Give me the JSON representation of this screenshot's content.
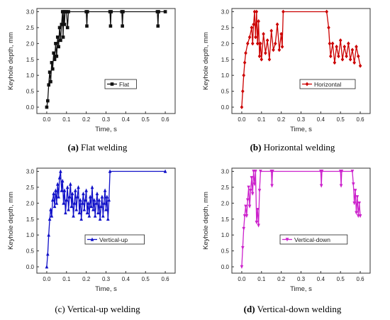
{
  "chart_data": [
    {
      "id": "flat",
      "type": "line",
      "caption_tag": "(a)",
      "caption_text": "Flat welding",
      "xlabel": "Time, s",
      "ylabel": "Keyhole depth, mm",
      "xlim": [
        -0.05,
        0.65
      ],
      "ylim": [
        -0.2,
        3.1
      ],
      "xticks": [
        "0.0",
        "0.1",
        "0.2",
        "0.3",
        "0.4",
        "0.5",
        "0.6"
      ],
      "yticks": [
        "0.0",
        "0.5",
        "1.0",
        "1.5",
        "2.0",
        "2.5",
        "3.0"
      ],
      "legend_position": "right",
      "series": [
        {
          "name": "Flat",
          "color": "#111111",
          "marker": "square",
          "points": [
            [
              0.0,
              0.0
            ],
            [
              0.005,
              0.2
            ],
            [
              0.01,
              0.7
            ],
            [
              0.015,
              1.1
            ],
            [
              0.02,
              0.8
            ],
            [
              0.025,
              1.4
            ],
            [
              0.03,
              1.2
            ],
            [
              0.035,
              1.7
            ],
            [
              0.04,
              1.5
            ],
            [
              0.045,
              2.0
            ],
            [
              0.05,
              1.6
            ],
            [
              0.055,
              2.2
            ],
            [
              0.06,
              1.9
            ],
            [
              0.065,
              2.5
            ],
            [
              0.07,
              2.1
            ],
            [
              0.075,
              2.6
            ],
            [
              0.08,
              3.0
            ],
            [
              0.083,
              2.2
            ],
            [
              0.086,
              3.0
            ],
            [
              0.09,
              2.6
            ],
            [
              0.093,
              3.0
            ],
            [
              0.1,
              3.0
            ],
            [
              0.105,
              2.5
            ],
            [
              0.11,
              3.0
            ],
            [
              0.2,
              3.0
            ],
            [
              0.203,
              2.55
            ],
            [
              0.206,
              3.0
            ],
            [
              0.32,
              3.0
            ],
            [
              0.323,
              2.55
            ],
            [
              0.326,
              3.0
            ],
            [
              0.38,
              3.0
            ],
            [
              0.383,
              2.55
            ],
            [
              0.386,
              3.0
            ],
            [
              0.56,
              3.0
            ],
            [
              0.563,
              2.55
            ],
            [
              0.566,
              3.0
            ],
            [
              0.6,
              3.0
            ]
          ]
        }
      ]
    },
    {
      "id": "horizontal",
      "type": "line",
      "caption_tag": "(b)",
      "caption_text": "Horizontal welding",
      "xlabel": "Time, s",
      "ylabel": "Keyhole depth, mm",
      "xlim": [
        -0.05,
        0.65
      ],
      "ylim": [
        -0.2,
        3.1
      ],
      "xticks": [
        "0.0",
        "0.1",
        "0.2",
        "0.3",
        "0.4",
        "0.5",
        "0.6"
      ],
      "yticks": [
        "0.0",
        "0.5",
        "1.0",
        "1.5",
        "2.0",
        "2.5",
        "3.0"
      ],
      "legend_position": "right",
      "series": [
        {
          "name": "Horizontal",
          "color": "#cc0000",
          "marker": "diamond",
          "points": [
            [
              0.0,
              0.0
            ],
            [
              0.005,
              0.5
            ],
            [
              0.01,
              1.0
            ],
            [
              0.015,
              1.4
            ],
            [
              0.02,
              1.7
            ],
            [
              0.03,
              2.0
            ],
            [
              0.04,
              2.2
            ],
            [
              0.05,
              2.5
            ],
            [
              0.055,
              2.0
            ],
            [
              0.06,
              2.6
            ],
            [
              0.065,
              3.0
            ],
            [
              0.07,
              2.2
            ],
            [
              0.075,
              3.0
            ],
            [
              0.08,
              2.0
            ],
            [
              0.085,
              2.7
            ],
            [
              0.09,
              1.6
            ],
            [
              0.095,
              2.0
            ],
            [
              0.1,
              1.5
            ],
            [
              0.11,
              2.3
            ],
            [
              0.12,
              1.7
            ],
            [
              0.13,
              2.1
            ],
            [
              0.14,
              1.5
            ],
            [
              0.15,
              2.4
            ],
            [
              0.16,
              1.8
            ],
            [
              0.17,
              2.0
            ],
            [
              0.18,
              2.6
            ],
            [
              0.19,
              1.8
            ],
            [
              0.2,
              2.3
            ],
            [
              0.205,
              1.9
            ],
            [
              0.21,
              3.0
            ],
            [
              0.43,
              3.0
            ],
            [
              0.44,
              2.5
            ],
            [
              0.445,
              2.0
            ],
            [
              0.45,
              1.6
            ],
            [
              0.46,
              2.0
            ],
            [
              0.47,
              1.4
            ],
            [
              0.48,
              1.9
            ],
            [
              0.49,
              1.6
            ],
            [
              0.5,
              2.1
            ],
            [
              0.51,
              1.5
            ],
            [
              0.52,
              1.9
            ],
            [
              0.53,
              1.6
            ],
            [
              0.54,
              2.0
            ],
            [
              0.55,
              1.5
            ],
            [
              0.56,
              1.8
            ],
            [
              0.57,
              1.4
            ],
            [
              0.58,
              1.9
            ],
            [
              0.59,
              1.6
            ],
            [
              0.6,
              1.3
            ]
          ]
        }
      ]
    },
    {
      "id": "vertical-up",
      "type": "line",
      "caption_tag": "(c)",
      "caption_text": "Vertical-up welding",
      "xlabel": "Time, s",
      "ylabel": "Keyhole depth, mm",
      "xlim": [
        -0.05,
        0.65
      ],
      "ylim": [
        -0.2,
        3.1
      ],
      "xticks": [
        "0.0",
        "0.1",
        "0.2",
        "0.3",
        "0.4",
        "0.5",
        "0.6"
      ],
      "yticks": [
        "0.0",
        "0.5",
        "1.0",
        "1.5",
        "2.0",
        "2.5",
        "3.0"
      ],
      "legend_position": "bottom-right",
      "series": [
        {
          "name": "Vertical-up",
          "color": "#1010c8",
          "marker": "triangle-up",
          "points": [
            [
              0.0,
              0.0
            ],
            [
              0.005,
              0.4
            ],
            [
              0.01,
              1.0
            ],
            [
              0.015,
              1.5
            ],
            [
              0.02,
              1.8
            ],
            [
              0.025,
              1.6
            ],
            [
              0.03,
              2.1
            ],
            [
              0.035,
              2.3
            ],
            [
              0.04,
              1.9
            ],
            [
              0.045,
              2.4
            ],
            [
              0.05,
              2.0
            ],
            [
              0.055,
              2.6
            ],
            [
              0.06,
              2.2
            ],
            [
              0.065,
              2.8
            ],
            [
              0.07,
              3.0
            ],
            [
              0.075,
              2.4
            ],
            [
              0.08,
              2.7
            ],
            [
              0.085,
              2.0
            ],
            [
              0.09,
              2.4
            ],
            [
              0.095,
              1.7
            ],
            [
              0.1,
              2.1
            ],
            [
              0.105,
              2.5
            ],
            [
              0.11,
              1.8
            ],
            [
              0.115,
              2.2
            ],
            [
              0.12,
              2.6
            ],
            [
              0.125,
              1.9
            ],
            [
              0.13,
              2.3
            ],
            [
              0.135,
              1.6
            ],
            [
              0.14,
              2.0
            ],
            [
              0.145,
              2.4
            ],
            [
              0.15,
              1.8
            ],
            [
              0.155,
              2.2
            ],
            [
              0.16,
              2.5
            ],
            [
              0.165,
              1.7
            ],
            [
              0.17,
              2.1
            ],
            [
              0.175,
              1.5
            ],
            [
              0.18,
              2.0
            ],
            [
              0.185,
              2.3
            ],
            [
              0.19,
              1.8
            ],
            [
              0.195,
              2.1
            ],
            [
              0.2,
              2.4
            ],
            [
              0.205,
              1.7
            ],
            [
              0.21,
              2.0
            ],
            [
              0.215,
              1.6
            ],
            [
              0.22,
              2.2
            ],
            [
              0.225,
              1.9
            ],
            [
              0.23,
              2.5
            ],
            [
              0.235,
              1.8
            ],
            [
              0.24,
              2.1
            ],
            [
              0.245,
              1.6
            ],
            [
              0.25,
              2.0
            ],
            [
              0.255,
              2.3
            ],
            [
              0.26,
              1.7
            ],
            [
              0.265,
              2.1
            ],
            [
              0.27,
              1.5
            ],
            [
              0.275,
              1.9
            ],
            [
              0.28,
              2.2
            ],
            [
              0.285,
              1.6
            ],
            [
              0.29,
              2.0
            ],
            [
              0.295,
              2.4
            ],
            [
              0.3,
              1.8
            ],
            [
              0.305,
              2.2
            ],
            [
              0.31,
              1.5
            ],
            [
              0.315,
              2.1
            ],
            [
              0.32,
              3.0
            ],
            [
              0.6,
              3.0
            ]
          ]
        }
      ]
    },
    {
      "id": "vertical-down",
      "type": "line",
      "caption_tag": "(d)",
      "caption_text": "Vertical-down welding",
      "xlabel": "Time, s",
      "ylabel": "Keyhole depth, mm",
      "xlim": [
        -0.05,
        0.65
      ],
      "ylim": [
        -0.2,
        3.1
      ],
      "xticks": [
        "0.0",
        "0.1",
        "0.2",
        "0.3",
        "0.4",
        "0.5",
        "0.6"
      ],
      "yticks": [
        "0.0",
        "0.5",
        "1.0",
        "1.5",
        "2.0",
        "2.5",
        "3.0"
      ],
      "legend_position": "bottom-right",
      "series": [
        {
          "name": "Vertical-down",
          "color": "#cc22cc",
          "marker": "triangle-down",
          "points": [
            [
              0.0,
              0.0
            ],
            [
              0.005,
              0.6
            ],
            [
              0.01,
              1.2
            ],
            [
              0.015,
              1.6
            ],
            [
              0.02,
              1.9
            ],
            [
              0.025,
              1.6
            ],
            [
              0.03,
              2.1
            ],
            [
              0.035,
              2.5
            ],
            [
              0.04,
              1.9
            ],
            [
              0.045,
              2.4
            ],
            [
              0.05,
              2.8
            ],
            [
              0.055,
              2.3
            ],
            [
              0.06,
              3.0
            ],
            [
              0.065,
              2.6
            ],
            [
              0.07,
              3.0
            ],
            [
              0.075,
              1.4
            ],
            [
              0.08,
              1.8
            ],
            [
              0.085,
              1.3
            ],
            [
              0.09,
              2.4
            ],
            [
              0.095,
              3.0
            ],
            [
              0.15,
              3.0
            ],
            [
              0.153,
              2.55
            ],
            [
              0.156,
              3.0
            ],
            [
              0.4,
              3.0
            ],
            [
              0.403,
              2.55
            ],
            [
              0.406,
              3.0
            ],
            [
              0.5,
              3.0
            ],
            [
              0.503,
              2.55
            ],
            [
              0.506,
              3.0
            ],
            [
              0.56,
              3.0
            ],
            [
              0.565,
              2.6
            ],
            [
              0.57,
              2.0
            ],
            [
              0.575,
              2.4
            ],
            [
              0.58,
              1.7
            ],
            [
              0.585,
              2.2
            ],
            [
              0.59,
              1.6
            ],
            [
              0.595,
              2.0
            ],
            [
              0.6,
              1.6
            ]
          ]
        }
      ]
    }
  ]
}
